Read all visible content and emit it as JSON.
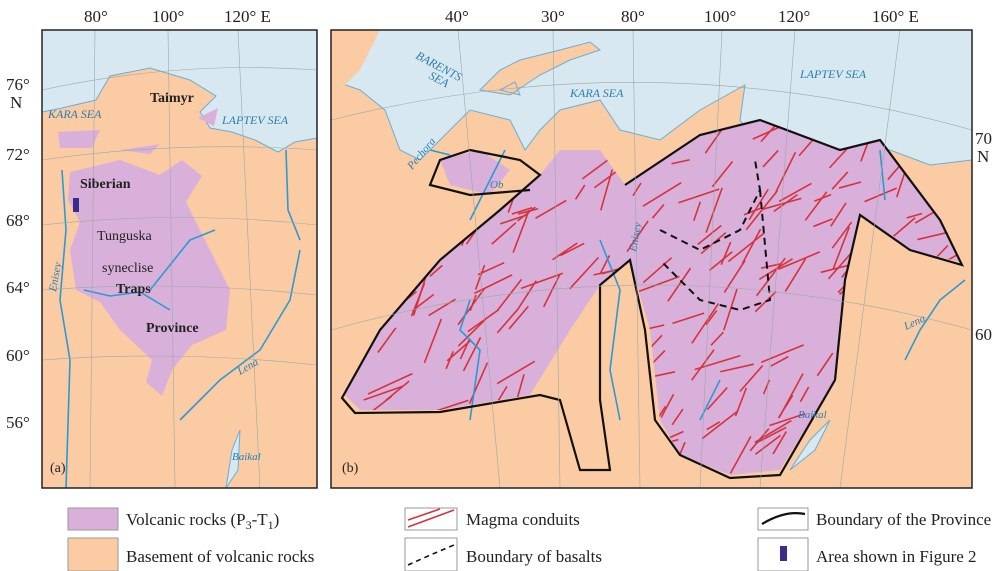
{
  "panel_a": {
    "label": "(a)",
    "lon_labels": [
      "80°",
      "100°",
      "120° E"
    ],
    "lat_labels": [
      "76°",
      "N",
      "72°",
      "68°",
      "64°",
      "60°",
      "56°"
    ],
    "seas": [
      "KARA SEA",
      "LAPTEV SEA"
    ],
    "regions": [
      "Taimyr",
      "Siberian",
      "Tunguska",
      "syneclise",
      "Traps",
      "Province"
    ],
    "rivers": [
      "Enisey",
      "Lena"
    ],
    "lake": "Baikal"
  },
  "panel_b": {
    "label": "(b)",
    "lon_labels": [
      "40°",
      "30°",
      "80°",
      "100°",
      "120°",
      "160° E"
    ],
    "lat_labels": [
      "70",
      "N",
      "60"
    ],
    "seas": [
      "BARENTS",
      "SEA",
      "KARA SEA",
      "LAPTEV SEA"
    ],
    "rivers": [
      "Pechora",
      "Ob",
      "Enisey",
      "Lena"
    ],
    "lake": "Baikal"
  },
  "legend": {
    "volcanic_rocks": {
      "text": "Volcanic rocks (P",
      "sub1": "3",
      "mid": "-T",
      "sub2": "1",
      "end": ")"
    },
    "basement": "Basement of volcanic rocks",
    "magma_conduits": "Magma conduits",
    "boundary_basalts": "Boundary of basalts",
    "boundary_province": "Boundary of the Province",
    "area_figure2": "Area shown in Figure 2"
  }
}
